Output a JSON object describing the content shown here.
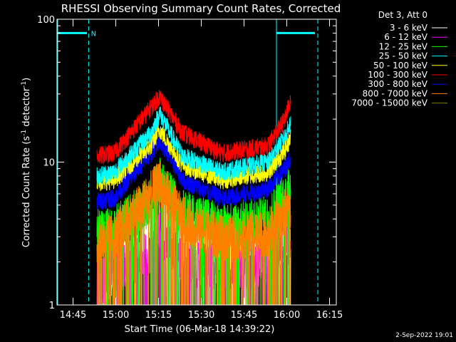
{
  "chart_data": {
    "type": "line",
    "title": "RHESSI Observing Summary Count Rates, Corrected",
    "xlabel": "Start Time (06-Mar-18 14:39:22)",
    "ylabel": "Corrected Count Rate (s",
    "ylabel_sup1": "-1",
    "ylabel_mid": " detector",
    "ylabel_sup2": "-1",
    "ylabel_end": ")",
    "yscale": "log",
    "ylim": [
      1,
      100
    ],
    "y_ticks": [
      {
        "value": 1,
        "label": "1"
      },
      {
        "value": 10,
        "label": "10"
      },
      {
        "value": 100,
        "label": "100"
      }
    ],
    "xlim_minutes": [
      0,
      98
    ],
    "x_ticks": [
      {
        "minute": 5.63,
        "label": "14:45"
      },
      {
        "minute": 20.63,
        "label": "15:00"
      },
      {
        "minute": 35.63,
        "label": "15:15"
      },
      {
        "minute": 50.63,
        "label": "15:30"
      },
      {
        "minute": 65.63,
        "label": "15:45"
      },
      {
        "minute": 80.63,
        "label": "16:00"
      },
      {
        "minute": 95.63,
        "label": "16:15"
      }
    ],
    "legend_header": "Det 3, Att 0",
    "legend_position": "right",
    "series": [
      {
        "name": "3 - 6 keV",
        "color": "#ffffff",
        "profile": [
          [
            14,
            1.0
          ],
          [
            20,
            1.7
          ],
          [
            33,
            3.2
          ],
          [
            36,
            4.2
          ],
          [
            44,
            3.0
          ],
          [
            58,
            2.5
          ],
          [
            74,
            2.4
          ],
          [
            80,
            2.8
          ],
          [
            82,
            2.9
          ]
        ]
      },
      {
        "name": "6 - 12 keV",
        "color": "#ff00ff",
        "profile": [
          [
            14,
            1.4
          ],
          [
            20,
            1.7
          ],
          [
            33,
            2.3
          ],
          [
            36,
            3.2
          ],
          [
            44,
            2.0
          ],
          [
            58,
            1.8
          ],
          [
            74,
            2.0
          ],
          [
            80,
            2.8
          ],
          [
            82,
            2.6
          ]
        ]
      },
      {
        "name": "12 - 25 keV",
        "color": "#00ff00",
        "profile": [
          [
            14,
            3.2
          ],
          [
            20,
            3.4
          ],
          [
            33,
            5.5
          ],
          [
            36,
            7.5
          ],
          [
            44,
            4.4
          ],
          [
            58,
            3.6
          ],
          [
            74,
            4.0
          ],
          [
            80,
            6.0
          ],
          [
            82,
            7.0
          ]
        ]
      },
      {
        "name": "25 - 50 keV",
        "color": "#00ffff",
        "profile": [
          [
            14,
            8.0
          ],
          [
            20,
            8.5
          ],
          [
            33,
            16
          ],
          [
            36,
            22
          ],
          [
            44,
            11
          ],
          [
            58,
            8.5
          ],
          [
            74,
            10
          ],
          [
            80,
            15
          ],
          [
            82,
            19
          ]
        ]
      },
      {
        "name": "50 - 100 keV",
        "color": "#ffff00",
        "profile": [
          [
            14,
            7.2
          ],
          [
            20,
            7.5
          ],
          [
            33,
            13
          ],
          [
            36,
            17
          ],
          [
            44,
            9.5
          ],
          [
            58,
            7.5
          ],
          [
            74,
            8.5
          ],
          [
            80,
            12
          ],
          [
            82,
            15
          ]
        ]
      },
      {
        "name": "100 - 300 keV",
        "color": "#ff0000",
        "profile": [
          [
            14,
            11.0
          ],
          [
            20,
            11.5
          ],
          [
            33,
            24
          ],
          [
            36,
            29
          ],
          [
            44,
            16
          ],
          [
            58,
            11.5
          ],
          [
            74,
            13
          ],
          [
            80,
            20
          ],
          [
            82,
            28
          ]
        ]
      },
      {
        "name": "300 - 800 keV",
        "color": "#0000ff",
        "profile": [
          [
            14,
            5.3
          ],
          [
            20,
            5.6
          ],
          [
            33,
            11.5
          ],
          [
            36,
            14.5
          ],
          [
            44,
            7.5
          ],
          [
            58,
            5.5
          ],
          [
            74,
            6.5
          ],
          [
            80,
            9.0
          ],
          [
            82,
            11
          ]
        ]
      },
      {
        "name": "800 - 7000 keV",
        "color": "#ff8000",
        "profile": [
          [
            14,
            2.8
          ],
          [
            20,
            3.0
          ],
          [
            33,
            6.0
          ],
          [
            36,
            7.2
          ],
          [
            44,
            4.0
          ],
          [
            58,
            2.9
          ],
          [
            74,
            3.2
          ],
          [
            80,
            4.5
          ],
          [
            82,
            5.0
          ]
        ]
      },
      {
        "name": "7000 - 15000 keV",
        "color": "#808000",
        "profile": []
      }
    ],
    "annotations": [
      {
        "text": "N",
        "color": "#00ffff",
        "x_minute": 11.9
      }
    ],
    "markers": {
      "color": "#00ffff",
      "solid_lines_minutes": [
        0,
        77
      ],
      "dashed_lines_minutes": [
        11.1,
        91.5
      ],
      "night_bars_minutes": [
        [
          0,
          10.5
        ],
        [
          77,
          90.5
        ]
      ],
      "night_bar_value": 80
    },
    "grid": false
  },
  "footer": {
    "date_stamp": "2-Sep-2022 19:01"
  }
}
